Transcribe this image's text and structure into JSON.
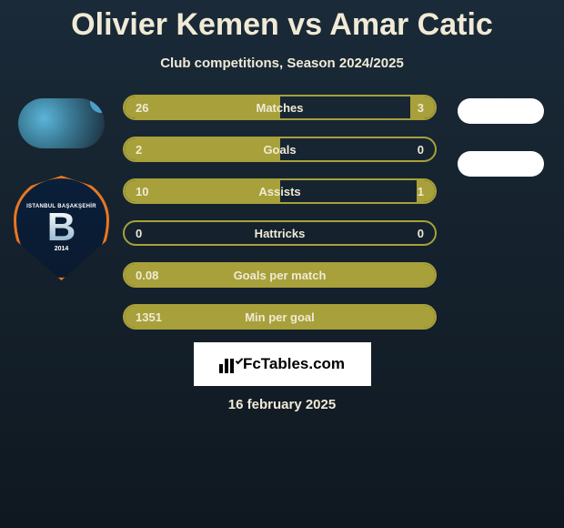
{
  "title": {
    "player1": "Olivier Kemen",
    "vs": "vs",
    "player2": "Amar Catic"
  },
  "subtitle": "Club competitions, Season 2024/2025",
  "bars": [
    {
      "label": "Matches",
      "left": "26",
      "right": "3",
      "left_pct": 50,
      "right_pct": 8,
      "fill": "sides"
    },
    {
      "label": "Goals",
      "left": "2",
      "right": "0",
      "left_pct": 50,
      "right_pct": 0,
      "fill": "left"
    },
    {
      "label": "Assists",
      "left": "10",
      "right": "1",
      "left_pct": 50,
      "right_pct": 6,
      "fill": "sides"
    },
    {
      "label": "Hattricks",
      "left": "0",
      "right": "0",
      "left_pct": 0,
      "right_pct": 0,
      "fill": "none"
    },
    {
      "label": "Goals per match",
      "left": "0.08",
      "right": "",
      "left_pct": 100,
      "right_pct": 0,
      "fill": "full"
    },
    {
      "label": "Min per goal",
      "left": "1351",
      "right": "",
      "left_pct": 100,
      "right_pct": 0,
      "fill": "full"
    }
  ],
  "badge": {
    "top_text": "ISTANBUL BAŞAKŞEHİR",
    "letter": "B",
    "year": "2014"
  },
  "fctables": "FcTables.com",
  "date": "16 february 2025",
  "colors": {
    "bar_border": "#a8a03a",
    "bar_fill": "#a8a03a",
    "text": "#f0ead6",
    "bg_top": "#1a2a38",
    "bg_bottom": "#0f1820",
    "badge_border": "#e87722",
    "badge_bg": "#0a1f3a"
  }
}
